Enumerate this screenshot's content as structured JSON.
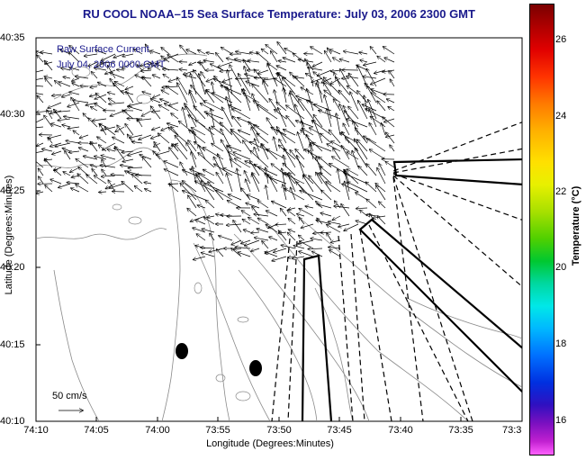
{
  "title": "RU COOL  NOAA–15  Sea Surface Temperature:  July 03, 2006 2300 GMT",
  "legend": {
    "line1": "Raw Surface Current",
    "line2": "July 04, 2006 0000 GMT"
  },
  "scale_label": "50 cm/s",
  "axes": {
    "xlabel": "Longitude (Degrees:Minutes)",
    "ylabel": "Latitude (Degrees:Minutes)",
    "xticks": [
      "74:10",
      "74:05",
      "74:00",
      "73:55",
      "73:50",
      "73:45",
      "73:40",
      "73:35",
      "73:3"
    ],
    "yticks": [
      "40:35",
      "40:30",
      "40:25",
      "40:20",
      "40:15",
      "40:10"
    ]
  },
  "colorbar": {
    "title": "Temperature (°C)",
    "ticks": [
      "26",
      "24",
      "22",
      "20",
      "18",
      "16"
    ]
  }
}
